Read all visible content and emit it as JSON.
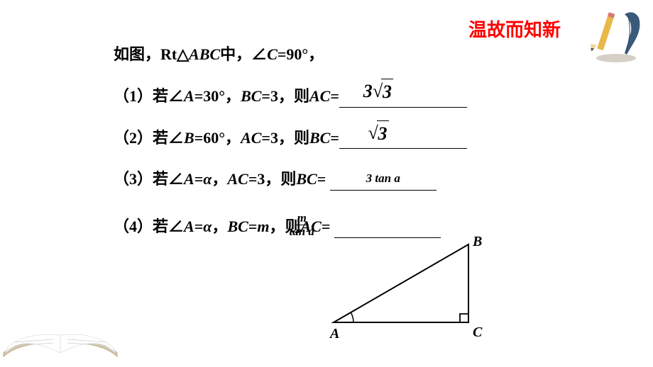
{
  "header": {
    "title": "温故而知新",
    "color": "#ff0000"
  },
  "intro": {
    "prefix": "如图，Rt△",
    "tri": "ABC",
    "mid": "中，∠",
    "ang": "C",
    "suffix": "=90°，"
  },
  "q1": {
    "num": "（1）",
    "p1": "若∠",
    "v1": "A",
    "p2": "=30°，",
    "v2": "BC",
    "p3": "=3，则",
    "v3": "AC",
    "p4": "=",
    "ans_coef": "3",
    "ans_rad": "3"
  },
  "q2": {
    "num": "（2）",
    "p1": "若∠",
    "v1": "B",
    "p2": "=60°，",
    "v2": "AC",
    "p3": "=3，则",
    "v3": "BC",
    "p4": "=",
    "ans_rad": "3"
  },
  "q3": {
    "num": "（3）",
    "p1": "若∠",
    "v1": "A",
    "p2": "=",
    "alpha": "α",
    "p3": "，",
    "v2": "AC",
    "p4": "=3，则",
    "v3": "BC",
    "p5": "= ",
    "ans": "3 tan a"
  },
  "q4": {
    "num": "（4）",
    "p1": "若∠",
    "v1": "A",
    "p2": "=",
    "alpha": "α",
    "p3": "，",
    "v2": "BC",
    "p4": "=",
    "m": "m",
    "p5": "，则",
    "v3": "AC",
    "p6": "= ",
    "ans_num": "m",
    "ans_den": "tan a"
  },
  "triangle": {
    "A": "A",
    "B": "B",
    "C": "C",
    "points": {
      "A": [
        10,
        130
      ],
      "B": [
        200,
        20
      ],
      "C": [
        200,
        130
      ]
    },
    "label_font": "italic bold 20px Times New Roman",
    "stroke": "#000000",
    "stroke_width": 2
  }
}
